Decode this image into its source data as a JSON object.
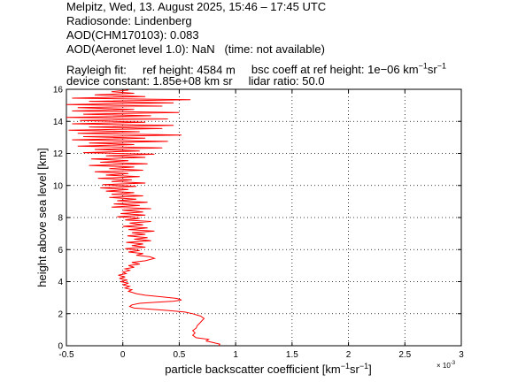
{
  "header": {
    "line1": "Melpitz, Wed, 13. August 2025, 15:46 – 17:45 UTC",
    "line2": "Radiosonde: Lindenberg",
    "line3": "AOD(CHM170103): 0.083",
    "line4_a": "AOD(Aeronet level 1.0): NaN",
    "line4_b": "(time: not available)",
    "line5_a": "Rayleigh fit:",
    "line5_b": "ref height: 4584 m",
    "line5_c": "bsc coeff at ref height: 1e−06 km",
    "line6_a": "device constant: 1.85e+08 km sr",
    "line6_b": "lidar ratio: 50.0"
  },
  "chart_data": {
    "type": "line",
    "xlabel": "particle backscatter coefficient [km",
    "ylabel": "height above sea level [km]",
    "x_exponent_label": "× 10",
    "x_exponent": "-3",
    "xlim": [
      -0.5,
      3
    ],
    "ylim": [
      0,
      16
    ],
    "xticks": [
      -0.5,
      0,
      0.5,
      1,
      1.5,
      2,
      2.5,
      3
    ],
    "xtick_labels": [
      "-0.5",
      "0",
      "0.5",
      "1",
      "1.5",
      "2",
      "2.5",
      "3"
    ],
    "yticks": [
      0,
      2,
      4,
      6,
      8,
      10,
      12,
      14,
      16
    ],
    "ytick_labels": [
      "0",
      "2",
      "4",
      "6",
      "8",
      "10",
      "12",
      "14",
      "16"
    ],
    "grid": true,
    "series": [
      {
        "color": "#ff0000",
        "points": [
          [
            0.85,
            0.0
          ],
          [
            0.86,
            0.1
          ],
          [
            0.8,
            0.2
          ],
          [
            0.74,
            0.3
          ],
          [
            0.76,
            0.4
          ],
          [
            0.65,
            0.5
          ],
          [
            0.62,
            0.65
          ],
          [
            0.64,
            0.8
          ],
          [
            0.62,
            0.95
          ],
          [
            0.65,
            1.1
          ],
          [
            0.66,
            1.25
          ],
          [
            0.68,
            1.4
          ],
          [
            0.7,
            1.55
          ],
          [
            0.72,
            1.7
          ],
          [
            0.69,
            1.85
          ],
          [
            0.62,
            2.0
          ],
          [
            0.55,
            2.1
          ],
          [
            0.4,
            2.2
          ],
          [
            0.2,
            2.3
          ],
          [
            0.1,
            2.35
          ],
          [
            0.06,
            2.45
          ],
          [
            0.08,
            2.55
          ],
          [
            0.15,
            2.65
          ],
          [
            0.3,
            2.72
          ],
          [
            0.45,
            2.78
          ],
          [
            0.52,
            2.85
          ],
          [
            0.48,
            2.95
          ],
          [
            0.35,
            3.05
          ],
          [
            0.2,
            3.15
          ],
          [
            0.12,
            3.25
          ],
          [
            0.05,
            3.4
          ],
          [
            0.08,
            3.5
          ],
          [
            0.02,
            3.6
          ],
          [
            0.06,
            3.7
          ],
          [
            0.0,
            3.8
          ],
          [
            0.05,
            3.9
          ],
          [
            -0.02,
            4.0
          ],
          [
            0.04,
            4.1
          ],
          [
            -0.03,
            4.2
          ],
          [
            0.02,
            4.3
          ],
          [
            -0.04,
            4.4
          ],
          [
            0.03,
            4.5
          ],
          [
            0.0,
            4.6
          ],
          [
            0.06,
            4.7
          ],
          [
            0.02,
            4.8
          ],
          [
            0.1,
            4.9
          ],
          [
            0.05,
            5.0
          ],
          [
            0.15,
            5.1
          ],
          [
            0.08,
            5.2
          ],
          [
            0.2,
            5.3
          ],
          [
            0.28,
            5.45
          ],
          [
            0.24,
            5.55
          ],
          [
            0.12,
            5.65
          ],
          [
            0.18,
            5.75
          ],
          [
            0.05,
            5.85
          ],
          [
            0.15,
            5.95
          ],
          [
            0.02,
            6.05
          ],
          [
            0.2,
            6.15
          ],
          [
            0.08,
            6.25
          ],
          [
            0.18,
            6.35
          ],
          [
            0.03,
            6.45
          ],
          [
            0.25,
            6.55
          ],
          [
            0.1,
            6.65
          ],
          [
            0.22,
            6.75
          ],
          [
            0.04,
            6.85
          ],
          [
            0.2,
            6.95
          ],
          [
            0.08,
            7.05
          ],
          [
            0.28,
            7.15
          ],
          [
            0.05,
            7.25
          ],
          [
            0.22,
            7.35
          ],
          [
            0.0,
            7.45
          ],
          [
            0.18,
            7.55
          ],
          [
            0.06,
            7.65
          ],
          [
            0.25,
            7.75
          ],
          [
            0.02,
            7.85
          ],
          [
            0.15,
            7.95
          ],
          [
            -0.05,
            8.05
          ],
          [
            0.2,
            8.15
          ],
          [
            -0.02,
            8.25
          ],
          [
            0.18,
            8.35
          ],
          [
            0.0,
            8.45
          ],
          [
            0.25,
            8.55
          ],
          [
            -0.1,
            8.65
          ],
          [
            0.15,
            8.75
          ],
          [
            -0.08,
            8.85
          ],
          [
            0.22,
            8.95
          ],
          [
            -0.05,
            9.05
          ],
          [
            0.12,
            9.15
          ],
          [
            -0.12,
            9.25
          ],
          [
            0.18,
            9.35
          ],
          [
            -0.1,
            9.45
          ],
          [
            0.1,
            9.55
          ],
          [
            -0.15,
            9.65
          ],
          [
            0.05,
            9.75
          ],
          [
            -0.2,
            9.85
          ],
          [
            0.12,
            9.95
          ],
          [
            -0.18,
            10.05
          ],
          [
            0.2,
            10.15
          ],
          [
            -0.1,
            10.25
          ],
          [
            0.08,
            10.35
          ],
          [
            -0.22,
            10.45
          ],
          [
            0.15,
            10.55
          ],
          [
            -0.15,
            10.65
          ],
          [
            0.05,
            10.75
          ],
          [
            -0.25,
            10.85
          ],
          [
            0.18,
            10.95
          ],
          [
            -0.12,
            11.05
          ],
          [
            0.1,
            11.15
          ],
          [
            -0.3,
            11.25
          ],
          [
            0.22,
            11.35
          ],
          [
            -0.2,
            11.45
          ],
          [
            0.05,
            11.55
          ],
          [
            -0.28,
            11.65
          ],
          [
            0.2,
            11.75
          ],
          [
            -0.15,
            11.85
          ],
          [
            0.28,
            11.95
          ],
          [
            -0.35,
            12.05
          ],
          [
            0.15,
            12.15
          ],
          [
            -0.25,
            12.25
          ],
          [
            0.35,
            12.35
          ],
          [
            -0.4,
            12.45
          ],
          [
            0.1,
            12.55
          ],
          [
            -0.3,
            12.65
          ],
          [
            0.4,
            12.75
          ],
          [
            -0.45,
            12.85
          ],
          [
            0.2,
            12.95
          ],
          [
            -0.35,
            13.05
          ],
          [
            0.52,
            13.15
          ],
          [
            -0.4,
            13.25
          ],
          [
            0.15,
            13.35
          ],
          [
            -0.48,
            13.45
          ],
          [
            0.35,
            13.55
          ],
          [
            -0.3,
            13.65
          ],
          [
            0.45,
            13.75
          ],
          [
            -0.45,
            13.85
          ],
          [
            0.2,
            13.95
          ],
          [
            -0.38,
            14.05
          ],
          [
            0.4,
            14.15
          ],
          [
            -0.5,
            14.25
          ],
          [
            0.25,
            14.35
          ],
          [
            -0.35,
            14.45
          ],
          [
            0.5,
            14.55
          ],
          [
            -0.45,
            14.65
          ],
          [
            0.1,
            14.75
          ],
          [
            -0.4,
            14.85
          ],
          [
            0.35,
            14.95
          ],
          [
            -0.5,
            15.05
          ],
          [
            0.45,
            15.15
          ],
          [
            -0.3,
            15.25
          ],
          [
            0.6,
            15.35
          ],
          [
            -0.45,
            15.45
          ],
          [
            0.2,
            15.55
          ],
          [
            -0.25,
            15.65
          ],
          [
            0.1,
            15.75
          ],
          [
            -0.1,
            15.85
          ],
          [
            0.05,
            15.95
          ]
        ]
      }
    ]
  }
}
